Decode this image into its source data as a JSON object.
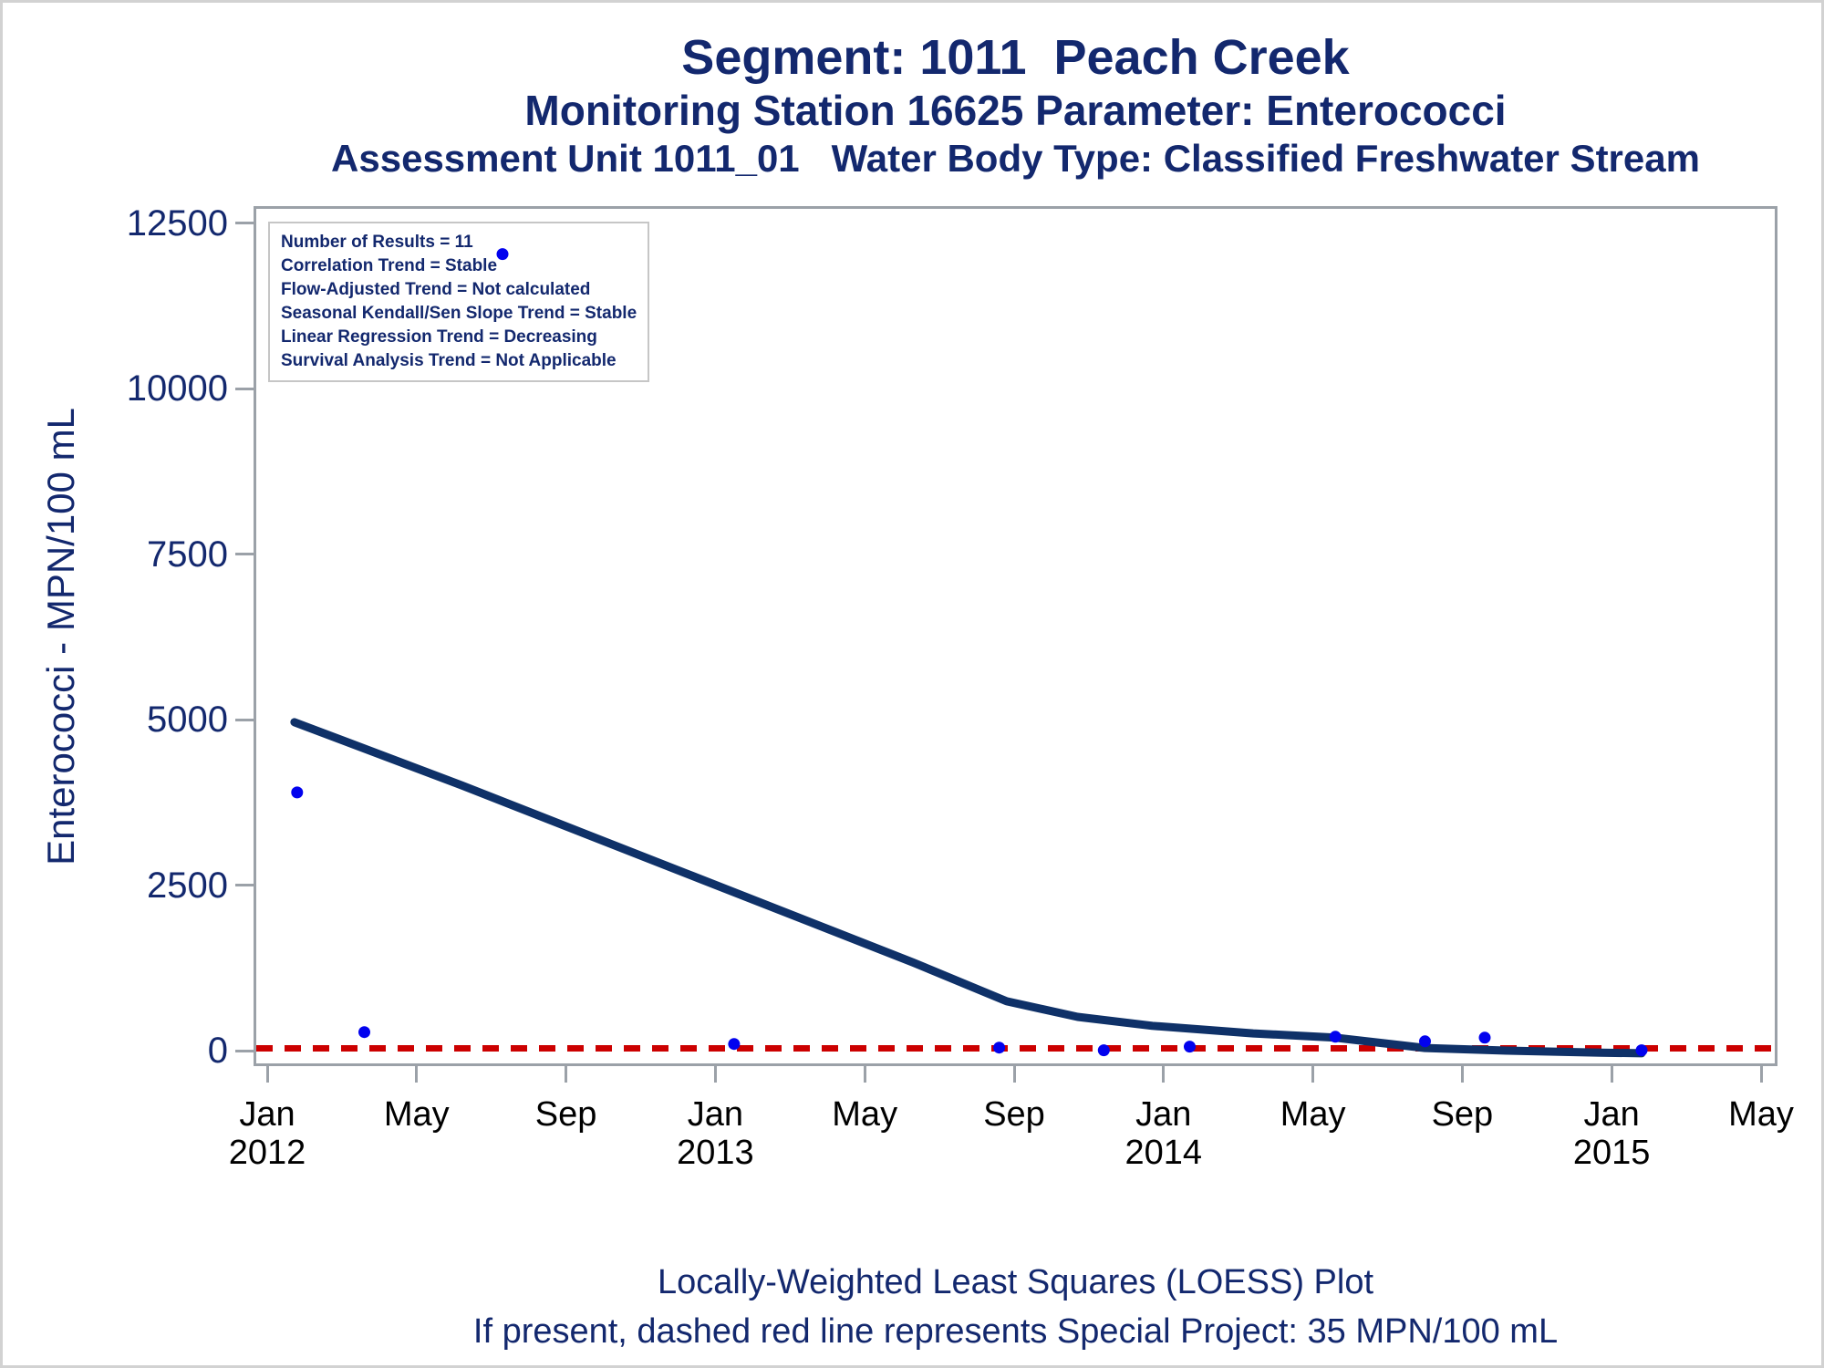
{
  "titles": {
    "line1": "Segment: 1011  Peach Creek",
    "line2": "Monitoring Station 16625 Parameter: Enterococci",
    "line3": "Assessment Unit 1011_01   Water Body Type: Classified Freshwater Stream"
  },
  "stats_box": {
    "lines": [
      "Number of Results = 11",
      "Correlation Trend = Stable",
      "Flow-Adjusted Trend = Not calculated",
      "Seasonal Kendall/Sen Slope Trend = Stable",
      "Linear Regression Trend = Decreasing",
      "Survival Analysis Trend = Not Applicable"
    ]
  },
  "footer": {
    "line1": "Locally-Weighted Least Squares (LOESS) Plot",
    "line2": "If present, dashed red line represents Special Project: 35 MPN/100 mL"
  },
  "colors": {
    "title_text": "#13286E",
    "loess_curve": "#0F3168",
    "data_point": "#0202EE",
    "reference_line": "#CC0000",
    "axis": "#9BA1A8",
    "x_tick_label": "#000000",
    "stats_box_border": "#C6C6C6",
    "outer_frame": "#D2D2D2"
  },
  "chart_data": {
    "type": "scatter",
    "subtype": "scatter-with-loess-curve",
    "title": "Segment: 1011  Peach Creek",
    "xlabel": "",
    "ylabel": "Enterococci - MPN/100 mL",
    "y_ticks": [
      0,
      2500,
      5000,
      7500,
      10000,
      12500
    ],
    "ylim": [
      -230,
      12760
    ],
    "x_unit": "months since Jan 2012",
    "xlim_months": [
      -0.4,
      40.4
    ],
    "x_ticks": [
      {
        "month_index": 0,
        "month": "Jan",
        "year": "2012"
      },
      {
        "month_index": 4,
        "month": "May",
        "year": ""
      },
      {
        "month_index": 8,
        "month": "Sep",
        "year": ""
      },
      {
        "month_index": 12,
        "month": "Jan",
        "year": "2013"
      },
      {
        "month_index": 16,
        "month": "May",
        "year": ""
      },
      {
        "month_index": 20,
        "month": "Sep",
        "year": ""
      },
      {
        "month_index": 24,
        "month": "Jan",
        "year": "2014"
      },
      {
        "month_index": 28,
        "month": "May",
        "year": ""
      },
      {
        "month_index": 32,
        "month": "Sep",
        "year": ""
      },
      {
        "month_index": 36,
        "month": "Jan",
        "year": "2015"
      },
      {
        "month_index": 40,
        "month": "May",
        "year": ""
      }
    ],
    "points": [
      {
        "date": "Jan 2012",
        "month_index": 0.8,
        "value": 3900
      },
      {
        "date": "Mar 2012",
        "month_index": 2.6,
        "value": 280
      },
      {
        "date": "Jul 2012",
        "month_index": 6.3,
        "value": 12030
      },
      {
        "date": "Jan 2013",
        "month_index": 12.5,
        "value": 100
      },
      {
        "date": "Aug 2013",
        "month_index": 19.6,
        "value": 45
      },
      {
        "date": "Nov 2013",
        "month_index": 22.4,
        "value": 5
      },
      {
        "date": "Feb 2014",
        "month_index": 24.7,
        "value": 60
      },
      {
        "date": "Jun 2014",
        "month_index": 28.6,
        "value": 210
      },
      {
        "date": "Aug 2014",
        "month_index": 31.0,
        "value": 140
      },
      {
        "date": "Oct 2014",
        "month_index": 32.6,
        "value": 195
      },
      {
        "date": "Jan 2015",
        "month_index": 36.8,
        "value": 5
      }
    ],
    "loess_curve": [
      [
        0.73,
        4960
      ],
      [
        5.1,
        4030
      ],
      [
        11.2,
        2680
      ],
      [
        17.3,
        1330
      ],
      [
        19.8,
        745
      ],
      [
        21.7,
        510
      ],
      [
        23.7,
        375
      ],
      [
        26.4,
        260
      ],
      [
        28.6,
        195
      ],
      [
        31.0,
        40
      ],
      [
        33.2,
        0
      ],
      [
        35.7,
        -30
      ],
      [
        36.8,
        -40
      ]
    ],
    "reference_line": {
      "value": 35,
      "style": "dashed",
      "label": "Special Project: 35 MPN/100 mL"
    },
    "legend": "none",
    "grid": "off"
  }
}
